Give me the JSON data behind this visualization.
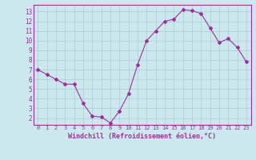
{
  "x": [
    0,
    1,
    2,
    3,
    4,
    5,
    6,
    7,
    8,
    9,
    10,
    11,
    12,
    13,
    14,
    15,
    16,
    17,
    18,
    19,
    20,
    21,
    22,
    23
  ],
  "y": [
    7.0,
    6.5,
    6.0,
    5.5,
    5.5,
    3.5,
    2.2,
    2.1,
    1.5,
    2.7,
    4.5,
    7.5,
    10.0,
    11.0,
    12.0,
    12.2,
    13.2,
    13.1,
    12.8,
    11.3,
    9.8,
    10.2,
    9.3,
    7.8
  ],
  "line_color": "#993399",
  "marker": "D",
  "marker_size": 2,
  "bg_color": "#cce8ee",
  "grid_color": "#aacccc",
  "xlabel": "Windchill (Refroidissement éolien,°C)",
  "xlabel_color": "#993399",
  "tick_color": "#993399",
  "ylim": [
    1.3,
    13.7
  ],
  "xlim": [
    -0.5,
    23.5
  ],
  "yticks": [
    2,
    3,
    4,
    5,
    6,
    7,
    8,
    9,
    10,
    11,
    12,
    13
  ],
  "xticks": [
    0,
    1,
    2,
    3,
    4,
    5,
    6,
    7,
    8,
    9,
    10,
    11,
    12,
    13,
    14,
    15,
    16,
    17,
    18,
    19,
    20,
    21,
    22,
    23
  ],
  "spine_color": "#993399"
}
